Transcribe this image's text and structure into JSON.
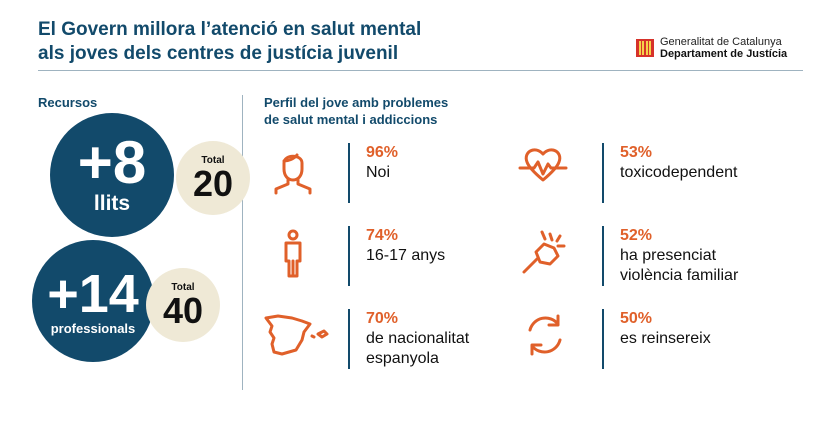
{
  "title": {
    "line1": "El Govern millora l’atenció en salut mental",
    "line2": "als joves dels centres de justícia juvenil"
  },
  "logo": {
    "line1": "Generalitat de Catalunya",
    "line2": "Departament de Justícia"
  },
  "resources": {
    "heading": "Recursos",
    "items": [
      {
        "value": "+8",
        "unit": "llits",
        "total_label": "Total",
        "total": "20"
      },
      {
        "value": "+14",
        "unit": "professionals",
        "total_label": "Total",
        "total": "40"
      }
    ]
  },
  "profile": {
    "heading_line1": "Perfil del jove amb problemes",
    "heading_line2": "de salut mental i addiccions",
    "stats": [
      {
        "icon": "person-head-icon",
        "percent": "96%",
        "line1": "Noi",
        "line2": ""
      },
      {
        "icon": "heartbeat-icon",
        "percent": "53%",
        "line1": "toxicodependent",
        "line2": ""
      },
      {
        "icon": "person-standing-icon",
        "percent": "74%",
        "line1": "16-17 anys",
        "line2": ""
      },
      {
        "icon": "fist-punch-icon",
        "percent": "52%",
        "line1": "ha presenciat",
        "line2": "violència familiar"
      },
      {
        "icon": "spain-map-icon",
        "percent": "70%",
        "line1": "de nacionalitat",
        "line2": "espanyola"
      },
      {
        "icon": "cycle-arrows-icon",
        "percent": "50%",
        "line1": "es reinsereix",
        "line2": ""
      }
    ]
  },
  "colors": {
    "primary": "#124a6b",
    "accent": "#e0602a",
    "beige": "#efe9d6"
  }
}
